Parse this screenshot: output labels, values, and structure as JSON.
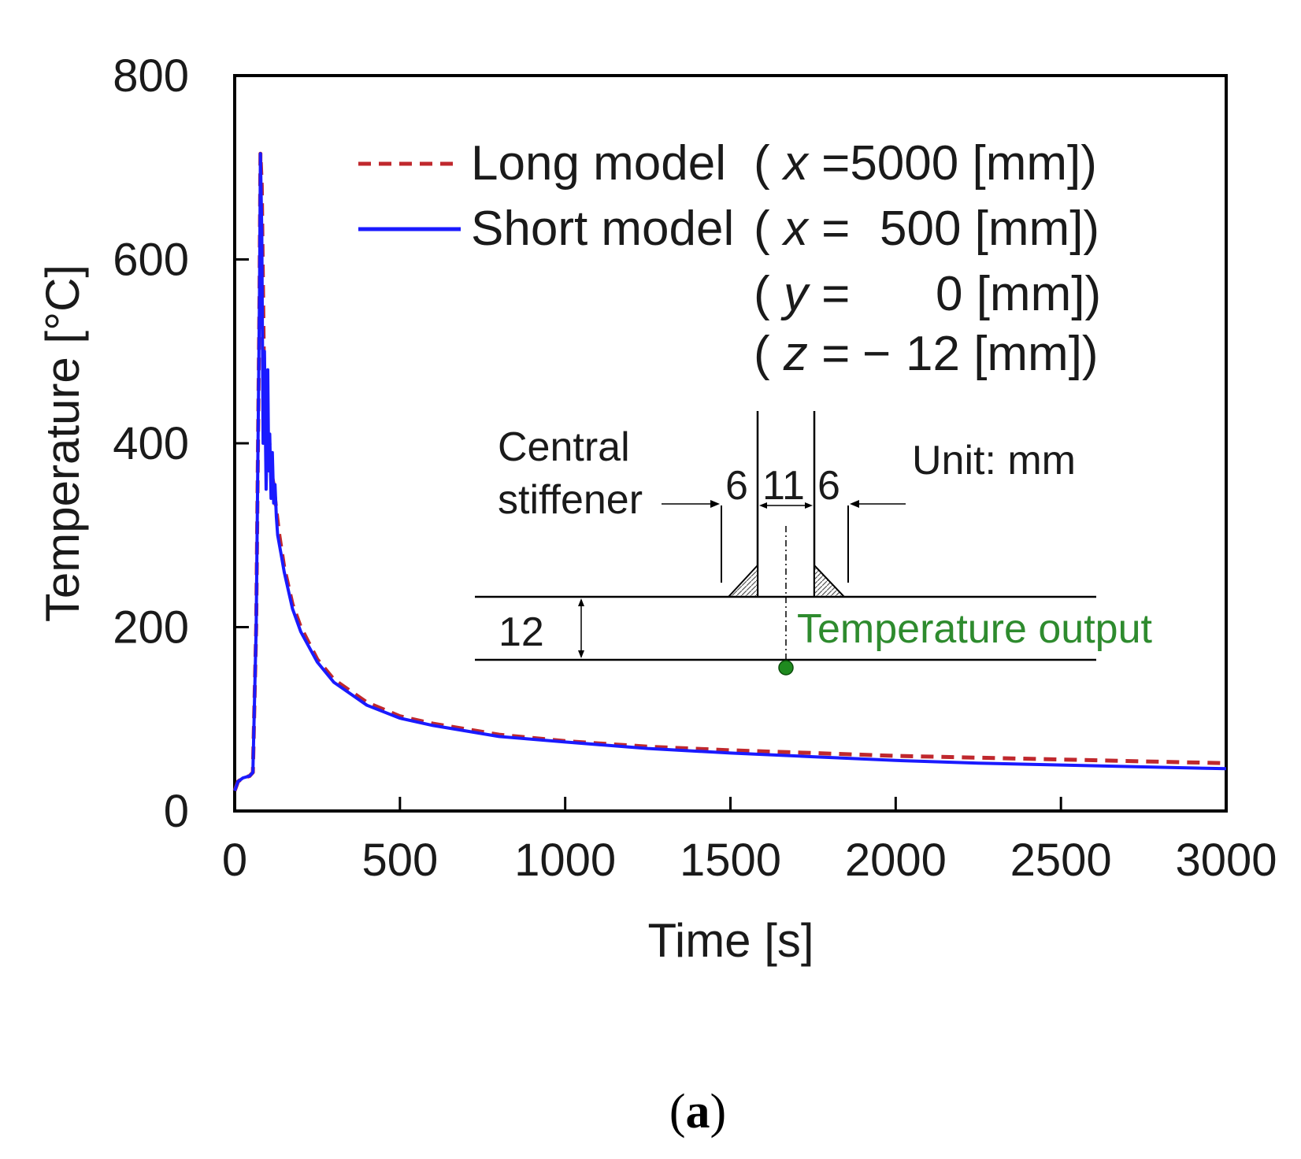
{
  "chart_data": {
    "type": "line",
    "title": "",
    "xlabel": "Time [s]",
    "ylabel": "Temperature [°C]",
    "xlim": [
      0,
      3000
    ],
    "ylim": [
      0,
      800
    ],
    "xticks": [
      "0",
      "500",
      "1000",
      "1500",
      "2000",
      "2500",
      "3000"
    ],
    "yticks": [
      "0",
      "200",
      "400",
      "600",
      "800"
    ],
    "grid": false,
    "legend_position": "top-right",
    "series": [
      {
        "name": "Long model",
        "legend_label": "Long model",
        "legend_coord": "( x =5000 [mm])",
        "color": "#c0282d",
        "style": "dashed",
        "x": [
          0,
          10,
          25,
          45,
          55,
          65,
          75,
          78,
          82,
          88,
          95,
          100,
          105,
          110,
          118,
          125,
          135,
          150,
          175,
          200,
          250,
          300,
          400,
          500,
          600,
          800,
          1000,
          1250,
          1500,
          1750,
          2000,
          2250,
          2500,
          2750,
          3000
        ],
        "y": [
          22,
          32,
          36,
          38,
          42,
          200,
          560,
          715,
          680,
          500,
          400,
          380,
          400,
          370,
          355,
          330,
          300,
          265,
          225,
          200,
          165,
          143,
          118,
          103,
          95,
          83,
          76,
          70,
          66,
          63,
          60,
          58,
          56,
          54,
          52
        ]
      },
      {
        "name": "Short model",
        "legend_label": "Short model",
        "legend_coord": "( x = 500 [mm])",
        "color": "#1a1aff",
        "style": "solid",
        "x": [
          0,
          10,
          25,
          45,
          55,
          65,
          75,
          78,
          82,
          86,
          90,
          95,
          100,
          103,
          106,
          110,
          114,
          118,
          122,
          126,
          130,
          140,
          150,
          175,
          200,
          250,
          300,
          400,
          500,
          600,
          800,
          1000,
          1250,
          1500,
          1750,
          2000,
          2250,
          2500,
          2750,
          3000
        ],
        "y": [
          22,
          32,
          36,
          38,
          42,
          200,
          560,
          715,
          630,
          400,
          500,
          350,
          480,
          370,
          410,
          340,
          390,
          335,
          355,
          320,
          300,
          280,
          260,
          220,
          195,
          162,
          140,
          115,
          101,
          93,
          81,
          75,
          68,
          63,
          59,
          55,
          52,
          50,
          48,
          46
        ]
      }
    ],
    "coordinates": {
      "y_line": [
        "( ",
        "y",
        " =",
        "0 [mm])"
      ],
      "z_line": [
        "( ",
        "z",
        " = ",
        "−",
        "12 [mm])"
      ]
    },
    "inset": {
      "stiffener_label_1": "Central",
      "stiffener_label_2": "stiffener",
      "unit": "Unit: mm",
      "dim_left": "6",
      "dim_mid": "11",
      "dim_right": "6",
      "thickness": "12",
      "output_label": "Temperature output",
      "output_color": "#2e8b2e"
    }
  },
  "caption": {
    "open": "(",
    "letter": "a",
    "close": ")"
  }
}
